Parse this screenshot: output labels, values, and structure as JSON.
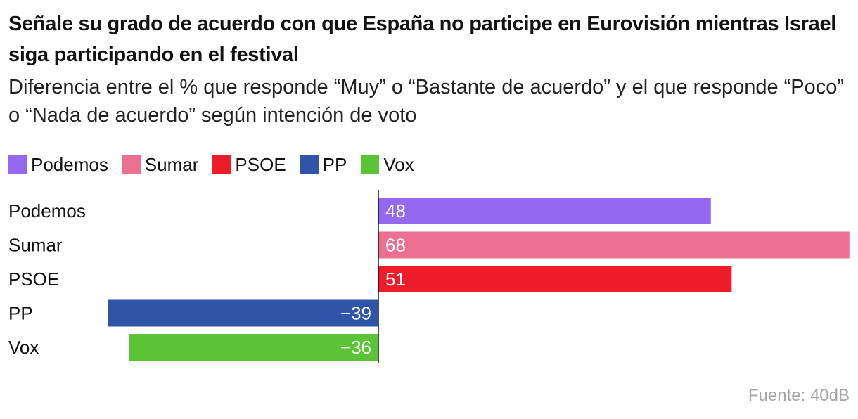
{
  "title": "Señale su grado de acuerdo con que España no participe en Eurovisión mientras Israel siga participando en el festival",
  "subtitle": "Diferencia entre el % que responde “Muy” o “Bastante de acuerdo” y el que responde “Poco” o “Nada de acuerdo” según intención de voto",
  "legend": [
    {
      "label": "Podemos",
      "color": "#9468f0"
    },
    {
      "label": "Sumar",
      "color": "#ec7090"
    },
    {
      "label": "PSOE",
      "color": "#ee1c28"
    },
    {
      "label": "PP",
      "color": "#2f55a9"
    },
    {
      "label": "Vox",
      "color": "#5bc436"
    }
  ],
  "source": "Fuente: 40dB",
  "chart_data": {
    "type": "bar",
    "orientation": "horizontal",
    "title": "Señale su grado de acuerdo con que España no participe en Eurovisión mientras Israel siga participando en el festival",
    "categories": [
      "Podemos",
      "Sumar",
      "PSOE",
      "PP",
      "Vox"
    ],
    "values": [
      48,
      68,
      51,
      -39,
      -36
    ],
    "labels": [
      "48",
      "68",
      "51",
      "−39",
      "−36"
    ],
    "colors": [
      "#9468f0",
      "#ec7090",
      "#ee1c28",
      "#2f55a9",
      "#5bc436"
    ],
    "xlim": [
      -39,
      68
    ],
    "xlabel": "",
    "ylabel": "",
    "grid": false,
    "legend_position": "top-left"
  }
}
